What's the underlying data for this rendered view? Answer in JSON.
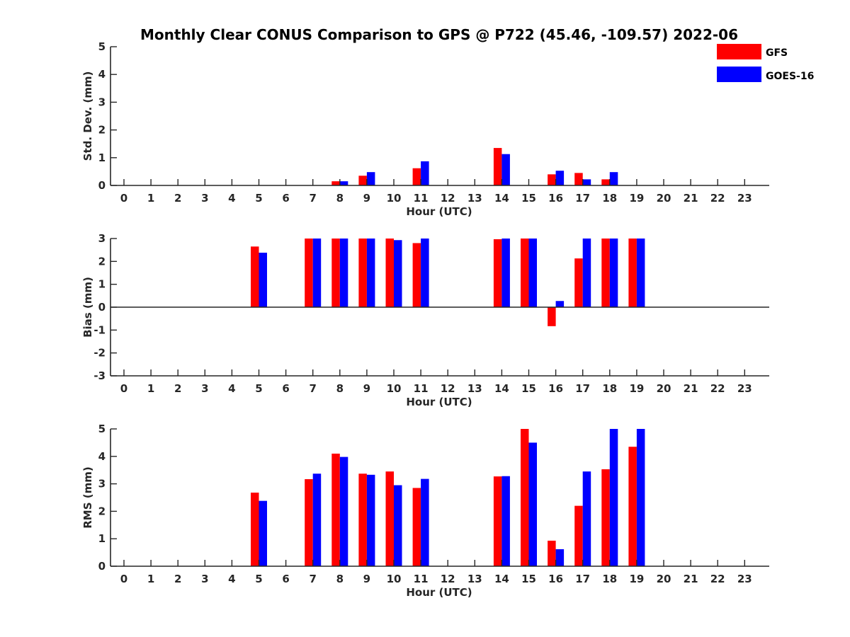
{
  "figure": {
    "title": "Monthly Clear CONUS Comparison to GPS @ P722 (45.46, -109.57) 2022-06"
  },
  "legend": {
    "placement": "top-right",
    "items": [
      {
        "name": "GFS",
        "color": "#ff0000"
      },
      {
        "name": "GOES-16",
        "color": "#0000ff"
      }
    ]
  },
  "chart_data": [
    {
      "type": "bar",
      "id": "stddev",
      "title": "",
      "xlabel": "Hour (UTC)",
      "ylabel": "Std. Dev. (mm)",
      "ylim": [
        0,
        5
      ],
      "yticks": [
        0,
        1,
        2,
        3,
        4,
        5
      ],
      "x": [
        0,
        1,
        2,
        3,
        4,
        5,
        6,
        7,
        8,
        9,
        10,
        11,
        12,
        13,
        14,
        15,
        16,
        17,
        18,
        19,
        20,
        21,
        22,
        23
      ],
      "series": [
        {
          "name": "GFS",
          "color": "#ff0000",
          "values": [
            null,
            null,
            null,
            null,
            null,
            null,
            null,
            null,
            0.15,
            0.35,
            null,
            0.62,
            null,
            null,
            1.35,
            null,
            0.4,
            0.45,
            0.22,
            null,
            null,
            null,
            null,
            null
          ]
        },
        {
          "name": "GOES-16",
          "color": "#0000ff",
          "values": [
            null,
            null,
            null,
            null,
            null,
            null,
            null,
            null,
            0.15,
            0.48,
            null,
            0.87,
            null,
            null,
            1.13,
            null,
            0.53,
            0.22,
            0.48,
            null,
            null,
            null,
            null,
            null
          ]
        }
      ]
    },
    {
      "type": "bar",
      "id": "bias",
      "title": "",
      "xlabel": "Hour (UTC)",
      "ylabel": "Bias (mm)",
      "ylim": [
        -3,
        3
      ],
      "yticks": [
        -3,
        -2,
        -1,
        0,
        1,
        2,
        3
      ],
      "zero_line": true,
      "x": [
        0,
        1,
        2,
        3,
        4,
        5,
        6,
        7,
        8,
        9,
        10,
        11,
        12,
        13,
        14,
        15,
        16,
        17,
        18,
        19,
        20,
        21,
        22,
        23
      ],
      "series": [
        {
          "name": "GFS",
          "color": "#ff0000",
          "values": [
            null,
            null,
            null,
            null,
            null,
            2.65,
            null,
            3.0,
            3.0,
            3.0,
            3.0,
            2.8,
            null,
            null,
            2.97,
            3.0,
            -0.83,
            2.13,
            3.0,
            3.0,
            null,
            null,
            null,
            null
          ]
        },
        {
          "name": "GOES-16",
          "color": "#0000ff",
          "values": [
            null,
            null,
            null,
            null,
            null,
            2.38,
            null,
            3.0,
            3.0,
            3.0,
            2.93,
            3.0,
            null,
            null,
            3.0,
            3.0,
            0.27,
            3.0,
            3.0,
            3.0,
            null,
            null,
            null,
            null
          ]
        }
      ]
    },
    {
      "type": "bar",
      "id": "rms",
      "title": "",
      "xlabel": "Hour (UTC)",
      "ylabel": "RMS (mm)",
      "ylim": [
        0,
        5
      ],
      "yticks": [
        0,
        1,
        2,
        3,
        4,
        5
      ],
      "x": [
        0,
        1,
        2,
        3,
        4,
        5,
        6,
        7,
        8,
        9,
        10,
        11,
        12,
        13,
        14,
        15,
        16,
        17,
        18,
        19,
        20,
        21,
        22,
        23
      ],
      "series": [
        {
          "name": "GFS",
          "color": "#ff0000",
          "values": [
            null,
            null,
            null,
            null,
            null,
            2.68,
            null,
            3.17,
            4.1,
            3.37,
            3.45,
            2.85,
            null,
            null,
            3.27,
            5.0,
            0.93,
            2.2,
            3.53,
            4.35,
            null,
            null,
            null,
            null
          ]
        },
        {
          "name": "GOES-16",
          "color": "#0000ff",
          "values": [
            null,
            null,
            null,
            null,
            null,
            2.38,
            null,
            3.37,
            3.98,
            3.33,
            2.95,
            3.18,
            null,
            null,
            3.28,
            4.5,
            0.62,
            3.45,
            5.0,
            5.0,
            null,
            null,
            null,
            null
          ]
        }
      ]
    }
  ]
}
